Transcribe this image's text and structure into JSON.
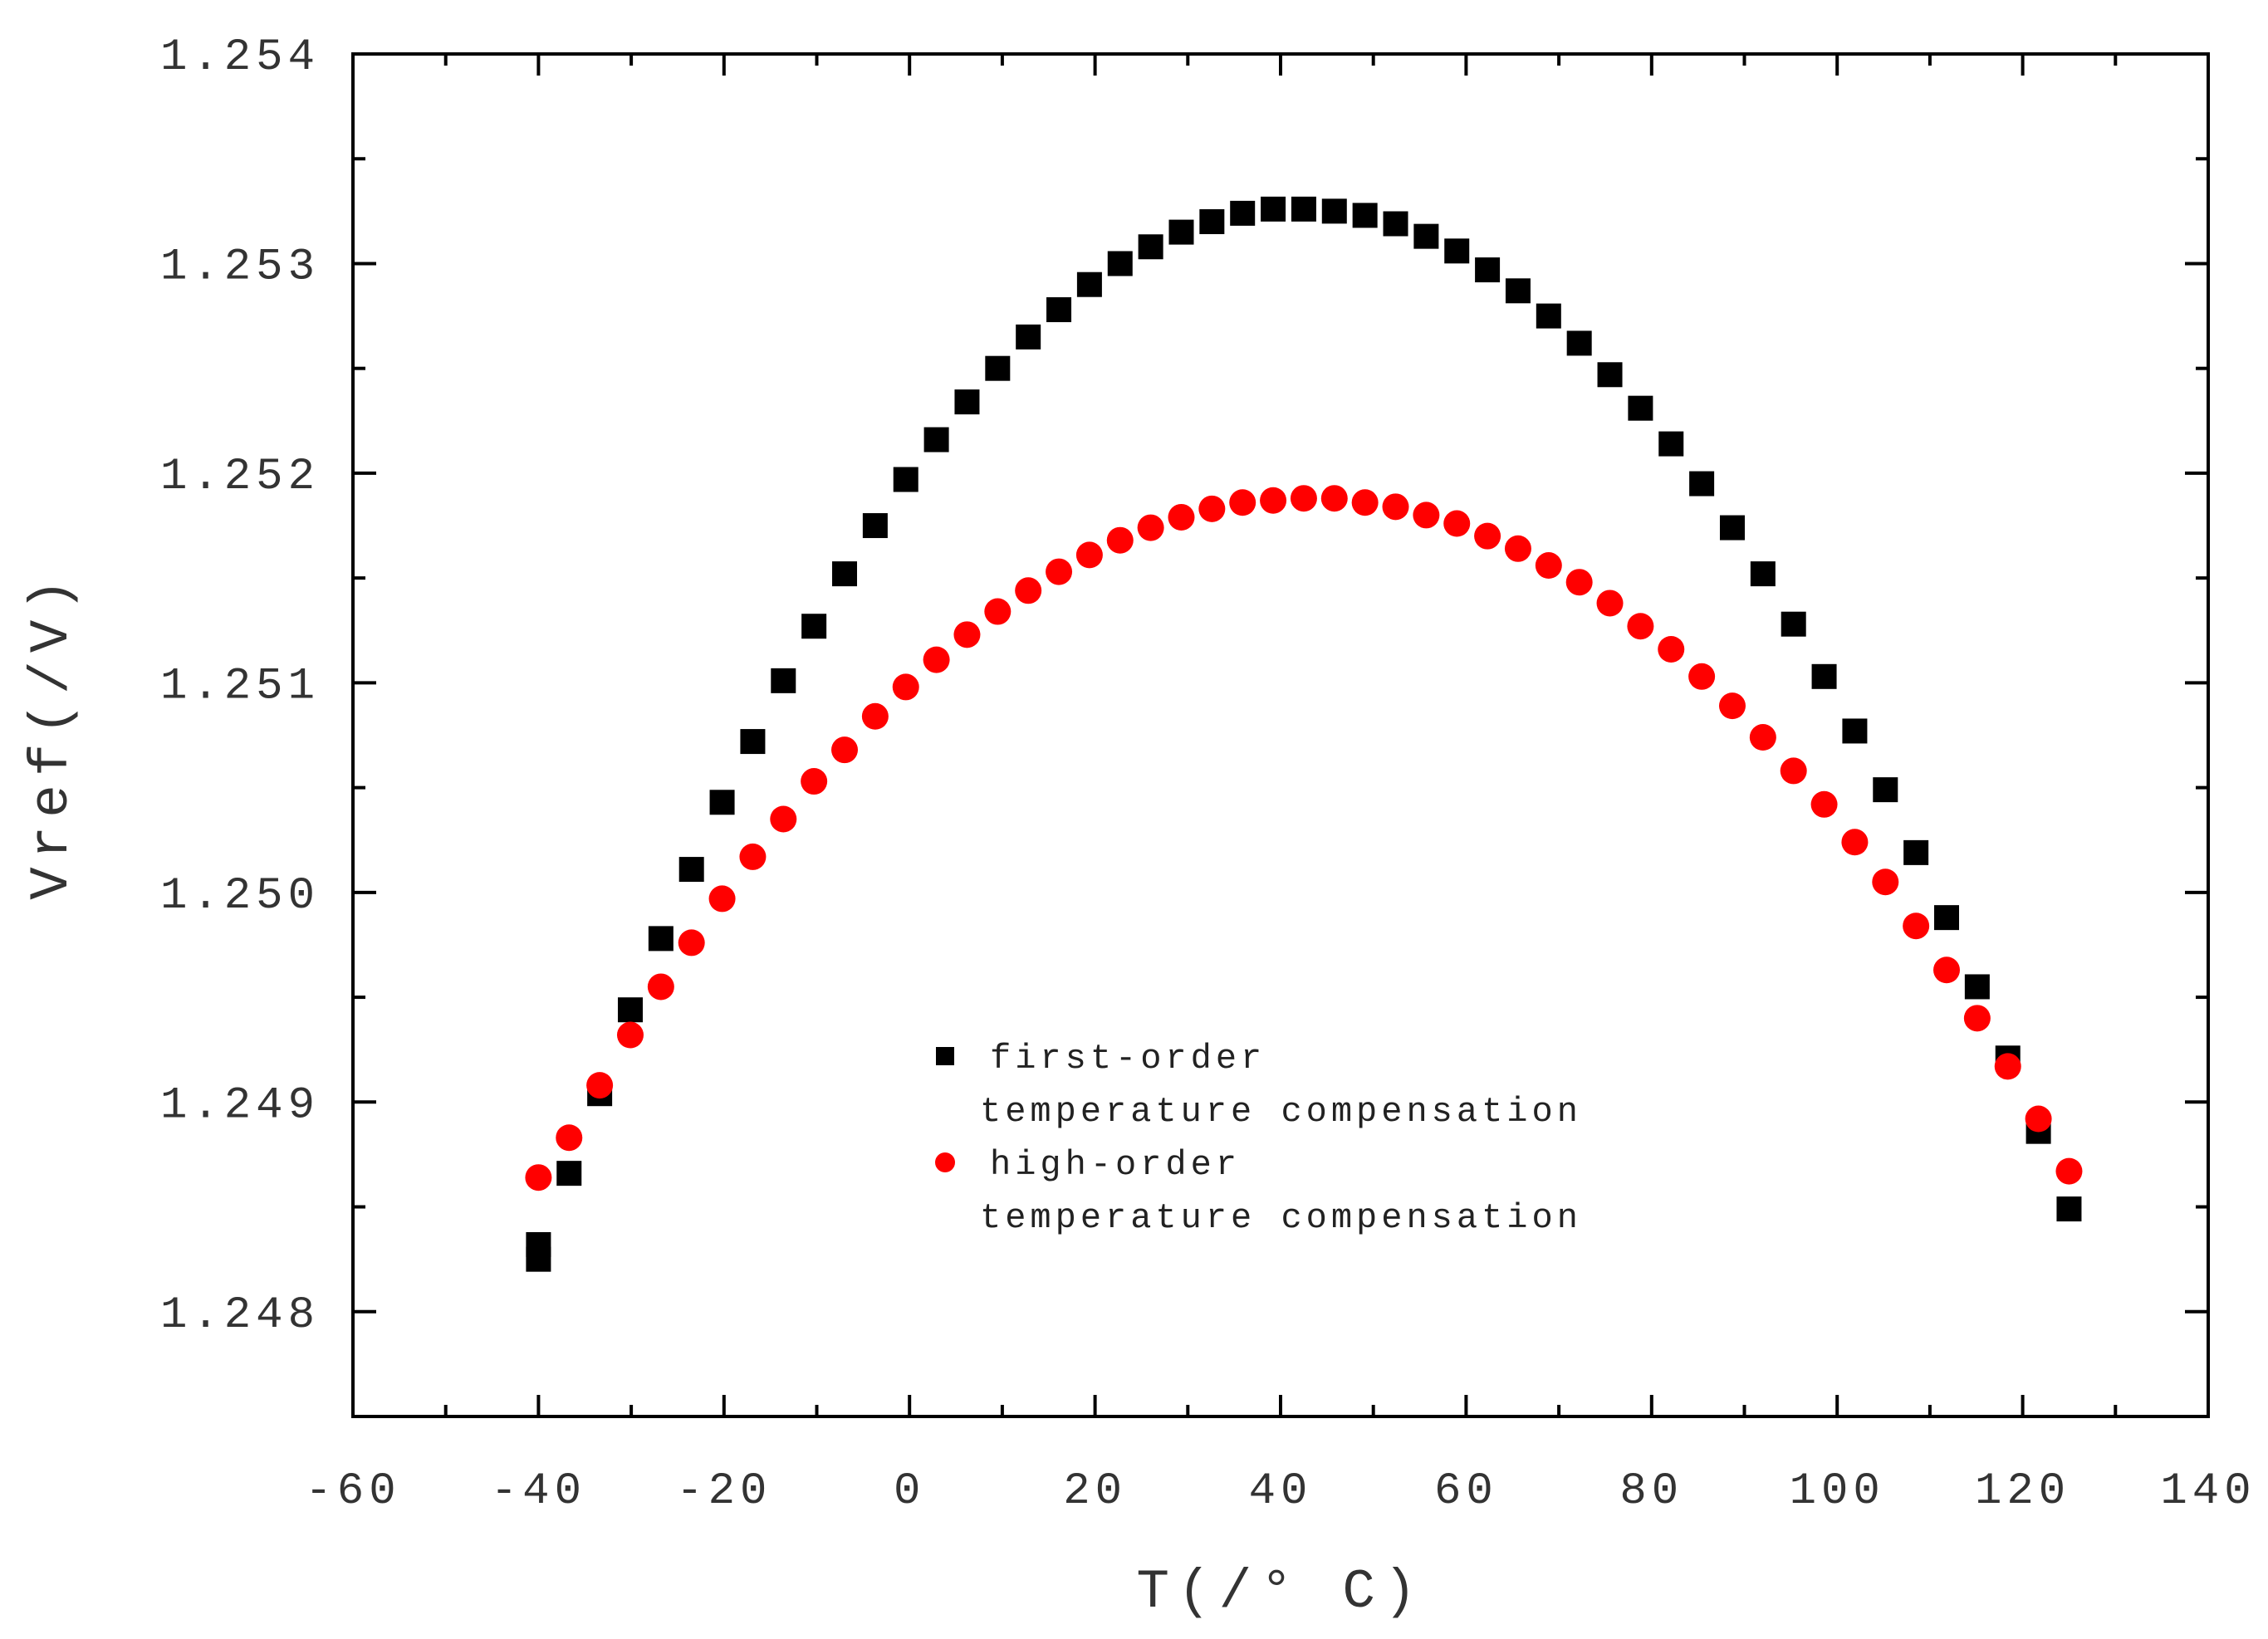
{
  "colors": {
    "series_first": "#000000",
    "series_high": "#ff0000",
    "axis": "#000000",
    "text": "#333333"
  },
  "chart_data": {
    "type": "scatter",
    "title": "",
    "xlabel": "T(/° C)",
    "ylabel": "Vref(/V)",
    "xlim": [
      -60,
      140
    ],
    "ylim": [
      1.2475,
      1.254
    ],
    "x_ticks": [
      -60,
      -40,
      -20,
      0,
      20,
      40,
      60,
      80,
      100,
      120,
      140
    ],
    "x_tick_labels": [
      "-60",
      "-40",
      "-20",
      "0",
      "20",
      "40",
      "60",
      "80",
      "100",
      "120",
      "140"
    ],
    "y_ticks": [
      1.248,
      1.249,
      1.25,
      1.251,
      1.252,
      1.253,
      1.254
    ],
    "y_tick_labels": [
      "1.248",
      "1.249",
      "1.250",
      "1.251",
      "1.252",
      "1.253",
      "1.254"
    ],
    "grid": false,
    "legend_position": "center-bottom",
    "series": [
      {
        "name_lines": [
          "first-order",
          "temperature compensation"
        ],
        "marker": "square",
        "color": "#000000",
        "points": [
          [
            -40,
            1.24825
          ],
          [
            -40,
            1.24832
          ],
          [
            -36.7,
            1.24866
          ],
          [
            -33.4,
            1.24904
          ],
          [
            -30.1,
            1.24944
          ],
          [
            -26.8,
            1.24978
          ],
          [
            -23.5,
            1.25011
          ],
          [
            -20.2,
            1.25043
          ],
          [
            -16.9,
            1.25072
          ],
          [
            -13.6,
            1.25101
          ],
          [
            -10.3,
            1.25127
          ],
          [
            -7.0,
            1.25152
          ],
          [
            -3.7,
            1.25175
          ],
          [
            -0.4,
            1.25197
          ],
          [
            2.9,
            1.25216
          ],
          [
            6.2,
            1.25234
          ],
          [
            9.5,
            1.2525
          ],
          [
            12.8,
            1.25265
          ],
          [
            16.1,
            1.25278
          ],
          [
            19.4,
            1.2529
          ],
          [
            22.7,
            1.253
          ],
          [
            26.0,
            1.25308
          ],
          [
            29.3,
            1.25315
          ],
          [
            32.6,
            1.2532
          ],
          [
            35.9,
            1.25324
          ],
          [
            39.2,
            1.25326
          ],
          [
            42.5,
            1.25326
          ],
          [
            45.8,
            1.25325
          ],
          [
            49.1,
            1.25323
          ],
          [
            52.4,
            1.25319
          ],
          [
            55.7,
            1.25313
          ],
          [
            59.0,
            1.25306
          ],
          [
            62.3,
            1.25297
          ],
          [
            65.6,
            1.25287
          ],
          [
            68.9,
            1.25275
          ],
          [
            72.2,
            1.25262
          ],
          [
            75.5,
            1.25247
          ],
          [
            78.8,
            1.25231
          ],
          [
            82.1,
            1.25214
          ],
          [
            85.4,
            1.25195
          ],
          [
            88.7,
            1.25174
          ],
          [
            92.0,
            1.25152
          ],
          [
            95.3,
            1.25128
          ],
          [
            98.6,
            1.25103
          ],
          [
            101.9,
            1.25077
          ],
          [
            105.2,
            1.25049
          ],
          [
            108.5,
            1.25019
          ],
          [
            111.8,
            1.24988
          ],
          [
            115.1,
            1.24955
          ],
          [
            118.4,
            1.24921
          ],
          [
            121.7,
            1.24886
          ],
          [
            125.0,
            1.24849
          ]
        ]
      },
      {
        "name_lines": [
          "high-order",
          "temperature compensation"
        ],
        "marker": "circle",
        "color": "#ff0000",
        "points": [
          [
            -40,
            1.24864
          ],
          [
            -36.7,
            1.24883
          ],
          [
            -33.4,
            1.24908
          ],
          [
            -30.1,
            1.24932
          ],
          [
            -26.8,
            1.24955
          ],
          [
            -23.5,
            1.24976
          ],
          [
            -20.2,
            1.24997
          ],
          [
            -16.9,
            1.25017
          ],
          [
            -13.6,
            1.25035
          ],
          [
            -10.3,
            1.25053
          ],
          [
            -7.0,
            1.25068
          ],
          [
            -3.7,
            1.25084
          ],
          [
            -0.4,
            1.25098
          ],
          [
            2.9,
            1.25111
          ],
          [
            6.2,
            1.25123
          ],
          [
            9.5,
            1.25134
          ],
          [
            12.8,
            1.25144
          ],
          [
            16.1,
            1.25153
          ],
          [
            19.4,
            1.25161
          ],
          [
            22.7,
            1.25168
          ],
          [
            26.0,
            1.25174
          ],
          [
            29.3,
            1.25179
          ],
          [
            32.6,
            1.25183
          ],
          [
            35.9,
            1.25186
          ],
          [
            39.2,
            1.25187
          ],
          [
            42.5,
            1.25188
          ],
          [
            45.8,
            1.25188
          ],
          [
            49.1,
            1.25186
          ],
          [
            52.4,
            1.25184
          ],
          [
            55.7,
            1.2518
          ],
          [
            59.0,
            1.25176
          ],
          [
            62.3,
            1.2517
          ],
          [
            65.6,
            1.25164
          ],
          [
            68.9,
            1.25156
          ],
          [
            72.2,
            1.25148
          ],
          [
            75.5,
            1.25138
          ],
          [
            78.8,
            1.25127
          ],
          [
            82.1,
            1.25116
          ],
          [
            85.4,
            1.25103
          ],
          [
            88.7,
            1.25089
          ],
          [
            92.0,
            1.25074
          ],
          [
            95.3,
            1.25058
          ],
          [
            98.6,
            1.25042
          ],
          [
            101.9,
            1.25024
          ],
          [
            105.2,
            1.25005
          ],
          [
            108.5,
            1.24984
          ],
          [
            111.8,
            1.24963
          ],
          [
            115.1,
            1.2494
          ],
          [
            118.4,
            1.24917
          ],
          [
            121.7,
            1.24892
          ],
          [
            125.0,
            1.24867
          ]
        ]
      }
    ]
  }
}
